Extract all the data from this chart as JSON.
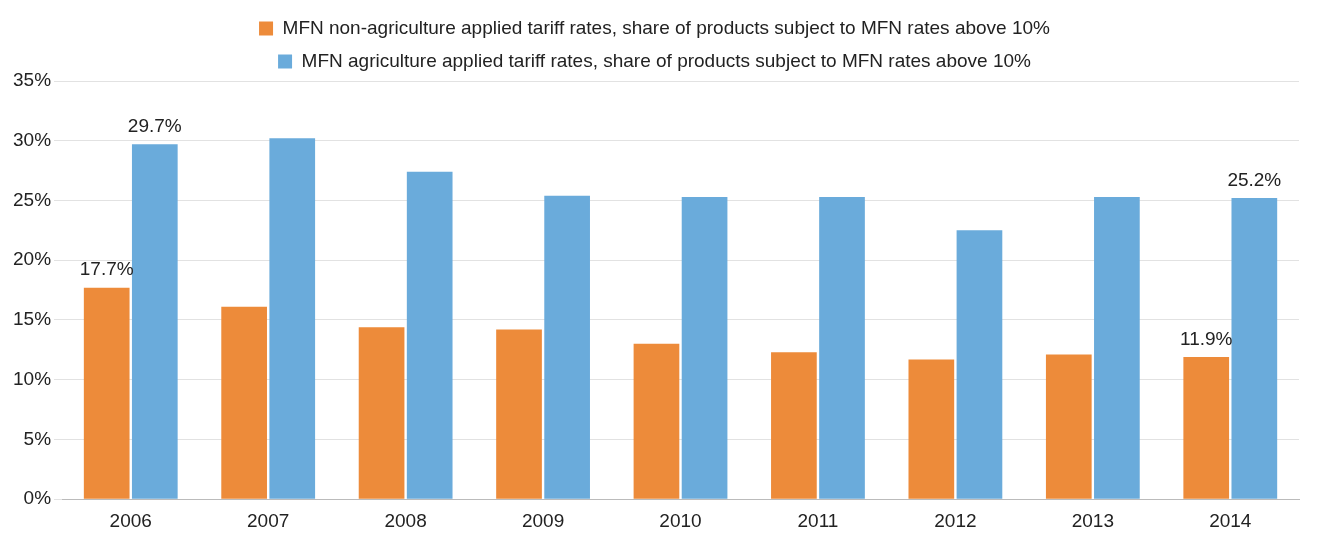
{
  "chart_data": {
    "type": "bar",
    "categories": [
      "2006",
      "2007",
      "2008",
      "2009",
      "2010",
      "2011",
      "2012",
      "2013",
      "2014"
    ],
    "series": [
      {
        "name": "MFN non-agriculture applied tariff rates, share of products subject to MFN rates above 10%",
        "color": "#ed8b3a",
        "values": [
          17.7,
          16.1,
          14.4,
          14.2,
          13.0,
          12.3,
          11.7,
          12.1,
          11.9
        ],
        "value_labels": [
          "17.7%",
          null,
          null,
          null,
          null,
          null,
          null,
          null,
          "11.9%"
        ]
      },
      {
        "name": "MFN agriculture applied tariff rates, share of products subject to MFN rates above 10%",
        "color": "#6aabdb",
        "values": [
          29.7,
          30.2,
          27.4,
          25.4,
          25.3,
          25.3,
          22.5,
          25.3,
          25.2
        ],
        "value_labels": [
          "29.7%",
          null,
          null,
          null,
          null,
          null,
          null,
          null,
          "25.2%"
        ]
      }
    ],
    "ylim": [
      0,
      35
    ],
    "yticks": [
      {
        "value": 0,
        "label": "0%"
      },
      {
        "value": 5,
        "label": "5%"
      },
      {
        "value": 10,
        "label": "10%"
      },
      {
        "value": 15,
        "label": "15%"
      },
      {
        "value": 20,
        "label": "20%"
      },
      {
        "value": 25,
        "label": "25%"
      },
      {
        "value": 30,
        "label": "30%"
      },
      {
        "value": 35,
        "label": "35%"
      }
    ],
    "grid": "y",
    "legend": "top"
  }
}
